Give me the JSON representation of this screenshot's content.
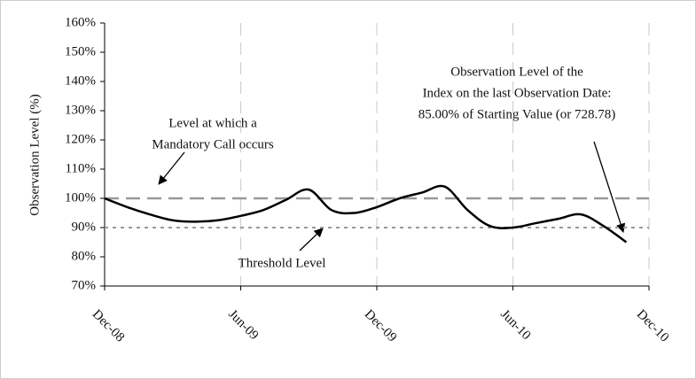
{
  "chart_data": {
    "type": "line",
    "y_label": "Observation Level (%)",
    "x": [
      "2008-12",
      "2009-01",
      "2009-02",
      "2009-03",
      "2009-04",
      "2009-05",
      "2009-06",
      "2009-07",
      "2009-08",
      "2009-09",
      "2009-10",
      "2009-11",
      "2009-12",
      "2010-01",
      "2010-02",
      "2010-03",
      "2010-04",
      "2010-05",
      "2010-06",
      "2010-07",
      "2010-08",
      "2010-09",
      "2010-10",
      "2010-11"
    ],
    "series": [
      {
        "color": "#000000",
        "values": [
          100,
          97,
          94.5,
          92.5,
          92,
          92.5,
          94,
          96,
          99.5,
          103,
          96,
          95,
          97,
          100,
          102,
          104,
          96,
          90.5,
          90,
          91.5,
          93,
          94.5,
          90.5,
          85
        ]
      }
    ],
    "xlim": [
      "2008-12",
      "2010-12"
    ],
    "xticks": [
      {
        "value": "2008-12",
        "label": "Dec-08"
      },
      {
        "value": "2009-06",
        "label": "Jun-09"
      },
      {
        "value": "2009-12",
        "label": "Dec-09"
      },
      {
        "value": "2010-06",
        "label": "Jun-10"
      },
      {
        "value": "2010-12",
        "label": "Dec-10"
      }
    ],
    "ylim": [
      70,
      160
    ],
    "yticks": [
      {
        "value": 70,
        "label": "70%"
      },
      {
        "value": 80,
        "label": "80%"
      },
      {
        "value": 90,
        "label": "90%"
      },
      {
        "value": 100,
        "label": "100%"
      },
      {
        "value": 110,
        "label": "110%"
      },
      {
        "value": 120,
        "label": "120%"
      },
      {
        "value": 130,
        "label": "130%"
      },
      {
        "value": 140,
        "label": "140%"
      },
      {
        "value": 150,
        "label": "150%"
      },
      {
        "value": 160,
        "label": "160%"
      }
    ],
    "grid": "x",
    "reference_lines": [
      {
        "value": 100,
        "style": "dashed",
        "color": "#999999"
      },
      {
        "value": 90,
        "style": "dotted",
        "color": "#999999"
      }
    ],
    "annotations": [
      {
        "lines": [
          "Level at which a",
          "Mandatory Call occurs"
        ]
      },
      {
        "lines": [
          "Threshold Level"
        ]
      },
      {
        "lines": [
          "Observation Level of the",
          "Index on the last Observation Date:",
          "85.00% of Starting Value (or 728.78)"
        ]
      }
    ]
  }
}
